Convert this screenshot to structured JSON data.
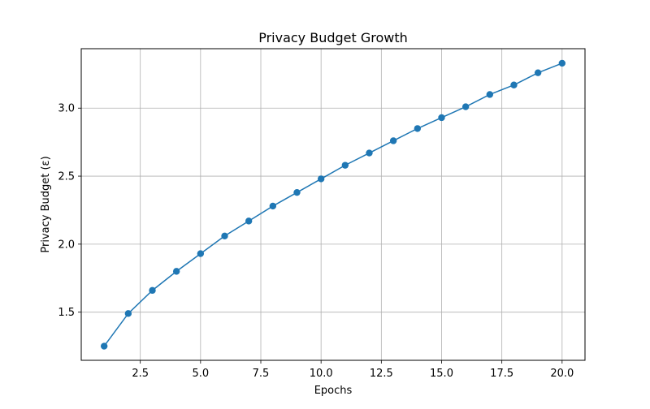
{
  "chart_data": {
    "type": "line",
    "title": "Privacy Budget Growth",
    "xlabel": "Epochs",
    "ylabel": "Privacy Budget (ε)",
    "xlim": [
      0.05,
      20.95
    ],
    "ylim": [
      1.146,
      3.437
    ],
    "xticks": [
      2.5,
      5.0,
      7.5,
      10.0,
      12.5,
      15.0,
      17.5,
      20.0
    ],
    "xtick_labels": [
      "2.5",
      "5.0",
      "7.5",
      "10.0",
      "12.5",
      "15.0",
      "17.5",
      "20.0"
    ],
    "yticks": [
      1.5,
      2.0,
      2.5,
      3.0
    ],
    "ytick_labels": [
      "1.5",
      "2.0",
      "2.5",
      "3.0"
    ],
    "grid": true,
    "legend": "none",
    "series": [
      {
        "color": "#1f77b4",
        "marker": "circle",
        "x": [
          1,
          2,
          3,
          4,
          5,
          6,
          7,
          8,
          9,
          10,
          11,
          12,
          13,
          14,
          15,
          16,
          17,
          18,
          19,
          20
        ],
        "y": [
          1.25,
          1.49,
          1.66,
          1.8,
          1.93,
          2.06,
          2.17,
          2.28,
          2.38,
          2.48,
          2.58,
          2.67,
          2.76,
          2.85,
          2.93,
          3.01,
          3.1,
          3.17,
          3.26,
          3.33
        ]
      }
    ]
  }
}
